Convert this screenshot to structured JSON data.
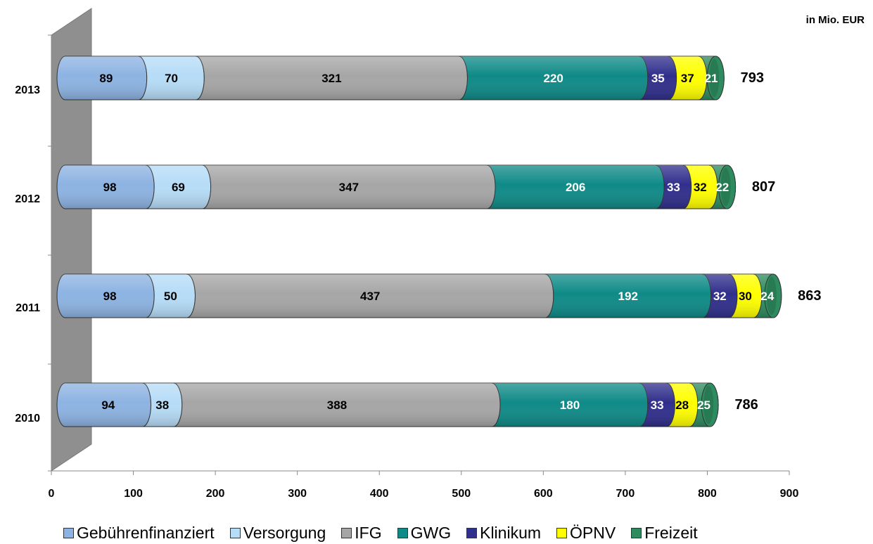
{
  "unit_label": "in Mio. EUR",
  "chart_data": {
    "type": "bar",
    "orientation": "horizontal",
    "stacked": true,
    "categories": [
      "2013",
      "2012",
      "2011",
      "2010"
    ],
    "series": [
      {
        "name": "Gebührenfinanziert",
        "color": "#8db3e2",
        "text_color": "#000000",
        "values": [
          89,
          98,
          98,
          94
        ]
      },
      {
        "name": "Versorgung",
        "color": "#b6dcf7",
        "text_color": "#000000",
        "values": [
          70,
          69,
          50,
          38
        ]
      },
      {
        "name": "IFG",
        "color": "#a6a6a6",
        "text_color": "#000000",
        "values": [
          321,
          347,
          437,
          388
        ]
      },
      {
        "name": "GWG",
        "color": "#0f8a87",
        "text_color": "#ffffff",
        "values": [
          220,
          206,
          192,
          180
        ]
      },
      {
        "name": "Klinikum",
        "color": "#302f8c",
        "text_color": "#ffffff",
        "values": [
          35,
          33,
          32,
          33
        ]
      },
      {
        "name": "ÖPNV",
        "color": "#ffff00",
        "text_color": "#000000",
        "values": [
          37,
          32,
          30,
          28
        ]
      },
      {
        "name": "Freizeit",
        "color": "#2e8b5f",
        "text_color": "#ffffff",
        "values": [
          21,
          22,
          24,
          25
        ]
      }
    ],
    "totals": [
      793,
      807,
      863,
      786
    ],
    "xlim": [
      0,
      900
    ],
    "xticks": [
      0,
      100,
      200,
      300,
      400,
      500,
      600,
      700,
      800,
      900
    ],
    "legend_position": "bottom",
    "grid": false
  }
}
